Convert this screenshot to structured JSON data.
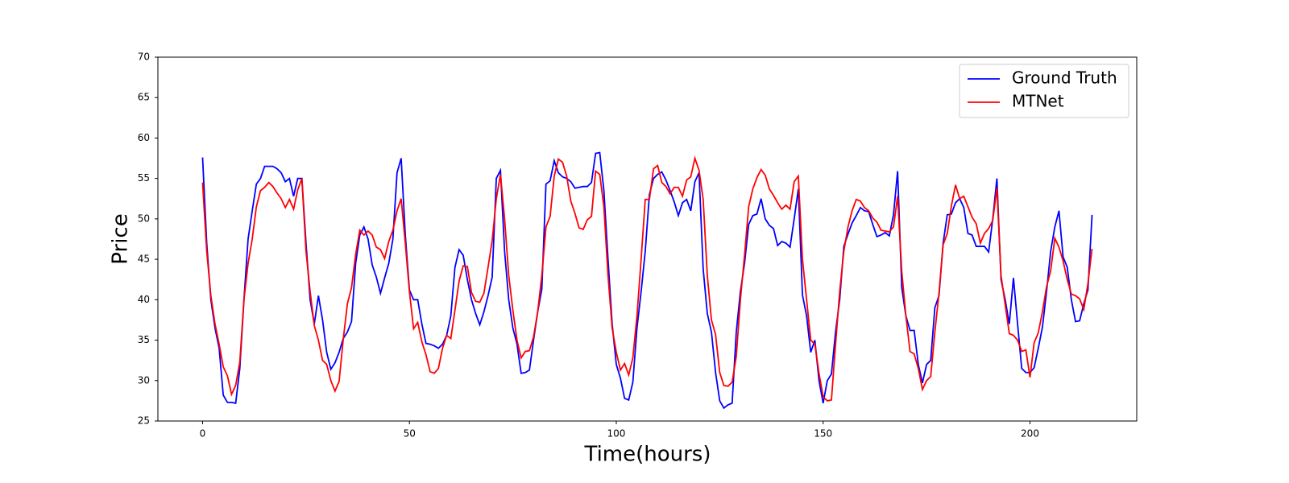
{
  "chart_data": {
    "type": "line",
    "xlabel": "Time(hours)",
    "ylabel": "Price",
    "x": [
      0,
      1,
      2,
      3,
      4,
      5,
      6,
      7,
      8,
      9,
      10,
      11,
      12,
      13,
      14,
      15,
      16,
      17,
      18,
      19,
      20,
      21,
      22,
      23,
      24,
      25,
      26,
      27,
      28,
      29,
      30,
      31,
      32,
      33,
      34,
      35,
      36,
      37,
      38,
      39,
      40,
      41,
      42,
      43,
      44,
      45,
      46,
      47,
      48,
      49,
      50,
      51,
      52,
      53,
      54,
      55,
      56,
      57,
      58,
      59,
      60,
      61,
      62,
      63,
      64,
      65,
      66,
      67,
      68,
      69,
      70,
      71,
      72,
      73,
      74,
      75,
      76,
      77,
      78,
      79,
      80,
      81,
      82,
      83,
      84,
      85,
      86,
      87,
      88,
      89,
      90,
      91,
      92,
      93,
      94,
      95,
      96,
      97,
      98,
      99,
      100,
      101,
      102,
      103,
      104,
      105,
      106,
      107,
      108,
      109,
      110,
      111,
      112,
      113,
      114,
      115,
      116,
      117,
      118,
      119,
      120,
      121,
      122,
      123,
      124,
      125,
      126,
      127,
      128,
      129,
      130,
      131,
      132,
      133,
      134,
      135,
      136,
      137,
      138,
      139,
      140,
      141,
      142,
      143,
      144,
      145,
      146,
      147,
      148,
      149,
      150,
      151,
      152,
      153,
      154,
      155,
      156,
      157,
      158,
      159,
      160,
      161,
      162,
      163,
      164,
      165,
      166,
      167,
      168,
      169,
      170,
      171,
      172,
      173,
      174,
      175,
      176,
      177,
      178,
      179,
      180,
      181,
      182,
      183,
      184,
      185,
      186,
      187,
      188,
      189,
      190,
      191,
      192,
      193,
      194,
      195,
      196,
      197,
      198,
      199,
      200,
      201,
      202,
      203,
      204,
      205,
      206,
      207,
      208,
      209,
      210,
      211,
      212,
      213,
      214,
      215
    ],
    "series": [
      {
        "name": "Ground Truth",
        "color": "#0000ff",
        "values": [
          57.6,
          47,
          40,
          36.5,
          34,
          28.2,
          27.3,
          27.3,
          27.2,
          31.5,
          40,
          47.5,
          51,
          54.3,
          55,
          56.5,
          56.5,
          56.5,
          56.2,
          55.7,
          54.6,
          55,
          52.8,
          55,
          55,
          47,
          40,
          37,
          40.5,
          37.5,
          33.5,
          31.4,
          32.2,
          33.5,
          35.2,
          36,
          37.3,
          44.5,
          48,
          49,
          47.5,
          44.3,
          42.8,
          40.8,
          42.7,
          44.5,
          47.5,
          55.7,
          57.5,
          48,
          41.2,
          40,
          40,
          37,
          34.6,
          34.5,
          34.3,
          34,
          34.5,
          35.6,
          38,
          44,
          46.2,
          45.5,
          42.5,
          40,
          38.3,
          36.9,
          38.5,
          40.5,
          42.8,
          55,
          56,
          46,
          40,
          36.5,
          34.5,
          30.9,
          31,
          31.3,
          35,
          38.5,
          41.3,
          54.3,
          54.7,
          57.2,
          55.7,
          55.2,
          55,
          54.6,
          53.8,
          53.9,
          54,
          54,
          54.5,
          58.1,
          58.2,
          53.5,
          45,
          37,
          32,
          30.3,
          27.8,
          27.6,
          29.8,
          36.5,
          41,
          46,
          53,
          55,
          55.5,
          55.8,
          54.8,
          53.5,
          52.1,
          50.4,
          52,
          52.4,
          51,
          54.6,
          55.7,
          43.8,
          38.3,
          36,
          31,
          27.5,
          26.6,
          27,
          27.2,
          36,
          41,
          44.5,
          49.3,
          50.4,
          50.6,
          52.5,
          50,
          49.2,
          48.8,
          46.7,
          47.2,
          47,
          46.5,
          50,
          53.7,
          40.6,
          38,
          33.5,
          35,
          30,
          27.2,
          30,
          30.8,
          36,
          40,
          46.6,
          48.1,
          49.5,
          50.4,
          51.4,
          51,
          50.9,
          49.3,
          47.8,
          48,
          48.3,
          47.9,
          50.5,
          55.9,
          41.5,
          38,
          36.2,
          36.2,
          32,
          29.7,
          32,
          32.5,
          39,
          40.5,
          47,
          50.5,
          50.6,
          52,
          52.5,
          51.4,
          48.2,
          48,
          46.6,
          46.6,
          46.6,
          45.9,
          50,
          55,
          42.5,
          40,
          37,
          42.7,
          37,
          31.5,
          31,
          31,
          31.6,
          34,
          36.6,
          41,
          46,
          49,
          51,
          45.3,
          44,
          40,
          37.3,
          37.4,
          39.5,
          41.2,
          50.5
        ]
      },
      {
        "name": "MTNet",
        "color": "#ff0000",
        "values": [
          54.5,
          46,
          40.5,
          37,
          34.5,
          31.7,
          30.6,
          28.3,
          29.4,
          32.3,
          40,
          44.5,
          47.5,
          51.5,
          53.5,
          53.9,
          54.5,
          54,
          53.2,
          52.5,
          51.4,
          52.4,
          51.2,
          53.6,
          55,
          46,
          41,
          36.8,
          35,
          32.5,
          32,
          30,
          28.7,
          29.9,
          35.1,
          39.5,
          41.5,
          45.6,
          48.6,
          48,
          48.5,
          48,
          46.5,
          46.2,
          45.1,
          47.2,
          48.6,
          51,
          52.5,
          47,
          41,
          36.4,
          37.2,
          34.8,
          33.2,
          31.1,
          30.9,
          31.5,
          34,
          35.6,
          35.2,
          38.7,
          42.3,
          44.2,
          44.1,
          40.9,
          39.8,
          39.7,
          40.8,
          44,
          47.3,
          52.5,
          55.5,
          50,
          43,
          38.7,
          35,
          32.8,
          33.6,
          33.7,
          35.4,
          38.5,
          43,
          49,
          50.3,
          55.3,
          57.4,
          57,
          55.3,
          52.2,
          50.7,
          48.9,
          48.7,
          49.9,
          50.3,
          55.9,
          55.5,
          51.5,
          43,
          36.5,
          33.5,
          31.3,
          32.1,
          30.7,
          32.8,
          38,
          45,
          52.4,
          52.4,
          56.2,
          56.6,
          54.5,
          54,
          53.1,
          53.9,
          53.9,
          52.8,
          54.8,
          55.2,
          57.5,
          56,
          52.4,
          43,
          37.5,
          35.7,
          31,
          29.4,
          29.3,
          29.8,
          33,
          40,
          45.5,
          51.5,
          53.7,
          55.1,
          56.1,
          55.4,
          53.7,
          52.9,
          52,
          51.2,
          51.7,
          51.2,
          54.6,
          55.3,
          45,
          40,
          35,
          34.5,
          30.9,
          28,
          27.5,
          27.6,
          34.5,
          41,
          46,
          49,
          51,
          52.4,
          52.2,
          51.4,
          51,
          50.1,
          49.6,
          48.6,
          48.5,
          48.4,
          49,
          52.8,
          43.5,
          38,
          33.6,
          33.3,
          31.5,
          28.9,
          30,
          30.5,
          36,
          40.8,
          46.8,
          48.2,
          51.6,
          54.2,
          52.5,
          52.8,
          51.5,
          50.2,
          49.4,
          47,
          48.2,
          48.8,
          49.8,
          53.8,
          43,
          39.4,
          35.8,
          35.6,
          35,
          33.6,
          33.8,
          30.4,
          34.7,
          35.9,
          38.5,
          41.6,
          43.6,
          47.6,
          46.5,
          44.8,
          42.5,
          40.7,
          40.5,
          40.1,
          38.8,
          42,
          46.3
        ]
      }
    ],
    "xlim": [
      -10.8,
      225.8
    ],
    "ylim": [
      25,
      70
    ],
    "xticks": [
      0,
      50,
      100,
      150,
      200
    ],
    "yticks": [
      25,
      30,
      35,
      40,
      45,
      50,
      55,
      60,
      65,
      70
    ],
    "legend": "upper right"
  }
}
